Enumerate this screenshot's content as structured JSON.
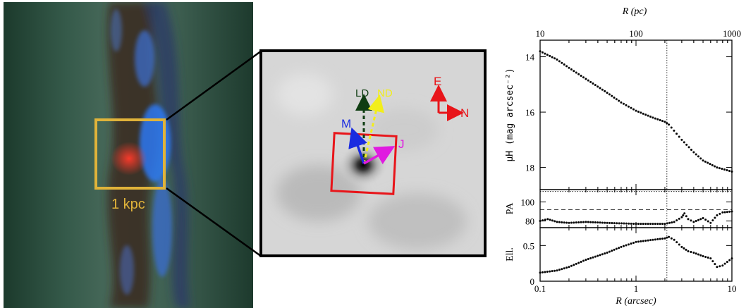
{
  "left_panel": {
    "scale_label": "1 kpc"
  },
  "middle_panel": {
    "arrows": [
      {
        "label": "LD",
        "color": "#0f3d12"
      },
      {
        "label": "ND",
        "color": "#f2ee1a"
      },
      {
        "label": "M",
        "color": "#1a2be0"
      },
      {
        "label": "J",
        "color": "#e01ae0"
      }
    ],
    "compass": {
      "east": "E",
      "north": "N",
      "color": "#e8151a"
    }
  },
  "colors": {
    "box": "#e0b33a",
    "zoom_box": "#e8151a"
  },
  "chart_data": {
    "type": "scatter",
    "top_axis": {
      "label": "R (pc)",
      "ticks": [
        "10",
        "100",
        "1000"
      ],
      "range": [
        10,
        1000
      ],
      "scale": "log"
    },
    "x": {
      "label": "R (arcsec)",
      "ticks": [
        "0.1",
        "1",
        "10"
      ],
      "range": [
        0.1,
        10
      ],
      "scale": "log"
    },
    "reference_radius_arcsec": 2.1,
    "panels": [
      {
        "id": "mu",
        "ylabel": "μH (mag arcsec⁻²)",
        "ylim": [
          13.4,
          18.8
        ],
        "inverted": true,
        "yticks": [
          "14",
          "16",
          "18"
        ],
        "series": [
          {
            "x": [
              0.1,
              0.15,
              0.2,
              0.3,
              0.5,
              0.7,
              1.0,
              1.5,
              2.0,
              2.2,
              3.0,
              4.0,
              5.0,
              7.0,
              10.0
            ],
            "y": [
              13.8,
              14.1,
              14.4,
              14.8,
              15.3,
              15.65,
              15.95,
              16.2,
              16.35,
              16.45,
              17.0,
              17.45,
              17.75,
              18.0,
              18.15
            ]
          }
        ]
      },
      {
        "id": "pa",
        "ylabel": "PA",
        "ylim": [
          73,
          113
        ],
        "yticks": [
          "80",
          "100"
        ],
        "reference_lines": [
          111,
          92
        ],
        "series": [
          {
            "x": [
              0.1,
              0.12,
              0.15,
              0.2,
              0.3,
              0.5,
              1.0,
              1.5,
              2.0,
              2.5,
              3.0,
              3.2,
              3.5,
              4.0,
              5.0,
              6.0,
              7.0,
              8.0,
              10.0
            ],
            "y": [
              80,
              82,
              79,
              78,
              79,
              78,
              77,
              77,
              77,
              79,
              84,
              88,
              82,
              79,
              83,
              78,
              86,
              89,
              90
            ]
          }
        ]
      },
      {
        "id": "ell",
        "ylabel": "Ell.",
        "ylim": [
          0,
          0.75
        ],
        "yticks": [
          "0",
          "0.5"
        ],
        "series": [
          {
            "x": [
              0.1,
              0.15,
              0.2,
              0.3,
              0.5,
              0.7,
              1.0,
              1.5,
              2.0,
              2.2,
              2.5,
              3.0,
              3.5,
              4.0,
              5.0,
              6.0,
              7.0,
              8.0,
              10.0
            ],
            "y": [
              0.12,
              0.15,
              0.2,
              0.3,
              0.4,
              0.48,
              0.55,
              0.58,
              0.6,
              0.62,
              0.58,
              0.48,
              0.42,
              0.4,
              0.35,
              0.32,
              0.2,
              0.22,
              0.32
            ]
          }
        ]
      }
    ]
  }
}
